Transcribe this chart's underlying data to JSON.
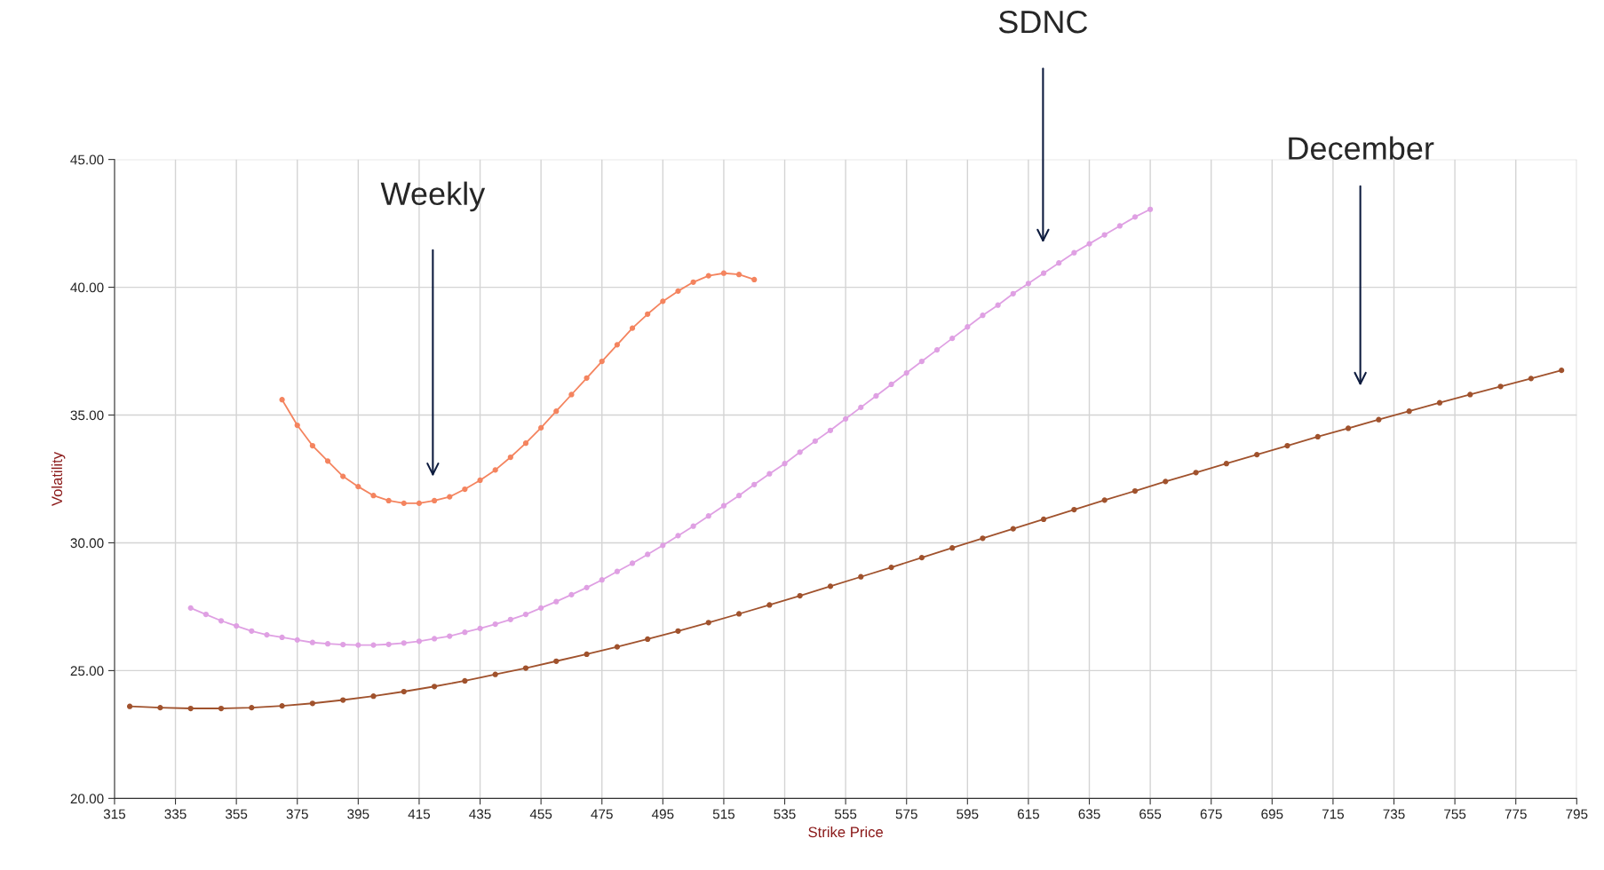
{
  "chart_data": {
    "type": "line",
    "xlabel": "Strike Price",
    "ylabel": "Volatility",
    "xlim": [
      315,
      795
    ],
    "ylim": [
      20,
      45
    ],
    "xticks": [
      315,
      335,
      355,
      375,
      395,
      415,
      435,
      455,
      475,
      495,
      515,
      535,
      555,
      575,
      595,
      615,
      635,
      655,
      675,
      695,
      715,
      735,
      755,
      775,
      795
    ],
    "yticks": [
      {
        "value": 20,
        "label": "20.00"
      },
      {
        "value": 25,
        "label": "25.00"
      },
      {
        "value": 30,
        "label": "30.00"
      },
      {
        "value": 35,
        "label": "35.00"
      },
      {
        "value": 40,
        "label": "40.00"
      },
      {
        "value": 45,
        "label": "45.00"
      }
    ],
    "grid": true,
    "marker": "circle",
    "line_style": "solid",
    "legend": false,
    "annotations": [
      "Weekly",
      "SDNC",
      "December"
    ],
    "series": [
      {
        "color": "#f4845f",
        "x": [
          370,
          375,
          380,
          385,
          390,
          395,
          400,
          405,
          410,
          415,
          420,
          425,
          430,
          435,
          440,
          445,
          450,
          455,
          460,
          465,
          470,
          475,
          480,
          485,
          490,
          495,
          500,
          505,
          510,
          515,
          520,
          525
        ],
        "values": [
          35.6,
          34.6,
          33.8,
          33.2,
          32.6,
          32.2,
          31.85,
          31.65,
          31.55,
          31.55,
          31.65,
          31.8,
          32.1,
          32.45,
          32.85,
          33.35,
          33.9,
          34.5,
          35.15,
          35.8,
          36.45,
          37.1,
          37.75,
          38.4,
          38.95,
          39.45,
          39.85,
          40.2,
          40.45,
          40.55,
          40.5,
          40.3
        ]
      },
      {
        "color": "#dfa0e3",
        "x": [
          340,
          345,
          350,
          355,
          360,
          365,
          370,
          375,
          380,
          385,
          390,
          395,
          400,
          405,
          410,
          415,
          420,
          425,
          430,
          435,
          440,
          445,
          450,
          455,
          460,
          465,
          470,
          475,
          480,
          485,
          490,
          495,
          500,
          505,
          510,
          515,
          520,
          525,
          530,
          535,
          540,
          545,
          550,
          555,
          560,
          565,
          570,
          575,
          580,
          585,
          590,
          595,
          600,
          605,
          610,
          615,
          620,
          625,
          630,
          635,
          640,
          645,
          650,
          655
        ],
        "values": [
          27.45,
          27.2,
          26.95,
          26.75,
          26.55,
          26.4,
          26.3,
          26.2,
          26.1,
          26.05,
          26.02,
          26.0,
          26.0,
          26.03,
          26.08,
          26.15,
          26.25,
          26.35,
          26.5,
          26.65,
          26.82,
          27.0,
          27.2,
          27.45,
          27.7,
          27.97,
          28.25,
          28.55,
          28.88,
          29.2,
          29.55,
          29.9,
          30.28,
          30.65,
          31.05,
          31.45,
          31.85,
          32.28,
          32.7,
          33.1,
          33.55,
          33.98,
          34.4,
          34.85,
          35.3,
          35.75,
          36.2,
          36.65,
          37.1,
          37.55,
          38.0,
          38.45,
          38.9,
          39.3,
          39.75,
          40.15,
          40.55,
          40.95,
          41.35,
          41.7,
          42.05,
          42.4,
          42.75,
          43.05
        ]
      },
      {
        "color": "#a0522d",
        "x": [
          320,
          330,
          340,
          350,
          360,
          370,
          380,
          390,
          400,
          410,
          420,
          430,
          440,
          450,
          460,
          470,
          480,
          490,
          500,
          510,
          520,
          530,
          540,
          550,
          560,
          570,
          580,
          590,
          600,
          610,
          620,
          630,
          640,
          650,
          660,
          670,
          680,
          690,
          700,
          710,
          720,
          730,
          740,
          750,
          760,
          770,
          780,
          790
        ],
        "values": [
          23.6,
          23.55,
          23.52,
          23.52,
          23.55,
          23.62,
          23.72,
          23.85,
          24.0,
          24.18,
          24.38,
          24.6,
          24.85,
          25.1,
          25.37,
          25.64,
          25.93,
          26.23,
          26.55,
          26.88,
          27.22,
          27.57,
          27.93,
          28.3,
          28.67,
          29.04,
          29.42,
          29.8,
          30.18,
          30.55,
          30.92,
          31.3,
          31.67,
          32.03,
          32.4,
          32.75,
          33.1,
          33.45,
          33.8,
          34.15,
          34.48,
          34.82,
          35.15,
          35.48,
          35.8,
          36.12,
          36.43,
          36.75
        ]
      }
    ]
  }
}
